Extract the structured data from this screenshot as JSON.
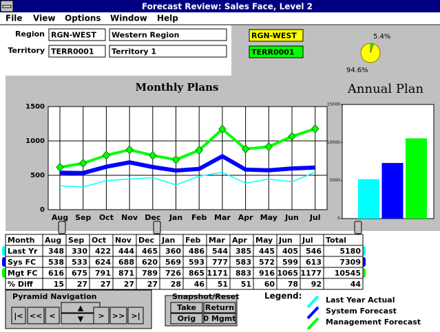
{
  "title_bar": "Forecast Review:  Sales Face,  Level 2",
  "menu": [
    "File",
    "View",
    "Options",
    "Window",
    "Help"
  ],
  "selection": {
    "region_label": "Region",
    "region_code": "RGN-WEST",
    "region_name": "Western Region",
    "territory_label": "Territory",
    "territory_code": "TERR0001",
    "territory_name": "Territory 1"
  },
  "badges": [
    {
      "text": "RGN-WEST",
      "color": "#ffff00"
    },
    {
      "text": "TERR0001",
      "color": "#00ff00"
    }
  ],
  "pie": {
    "type": "pie",
    "values": [
      5.4,
      94.6
    ],
    "value_labels": [
      "5.4%",
      "94.6%"
    ],
    "colors": [
      "#00ff00",
      "#ffff00"
    ]
  },
  "monthly_plans": {
    "type": "line",
    "title": "Monthly Plans",
    "ylim": [
      0,
      1500
    ],
    "yticks": [
      0,
      500,
      1000,
      1500
    ],
    "grid": true
  },
  "annual_plan": {
    "type": "bar",
    "title": "Annual Plan",
    "ylim": [
      0,
      15000
    ],
    "yticks": [
      0,
      5000,
      10000,
      15000
    ]
  },
  "table": {
    "header": [
      "Month",
      "Aug",
      "Sep",
      "Oct",
      "Nov",
      "Dec",
      "Jan",
      "Feb",
      "Mar",
      "Apr",
      "May",
      "Jun",
      "Jul",
      "Total"
    ],
    "rows": [
      [
        "Last Yr",
        348,
        330,
        422,
        444,
        465,
        360,
        486,
        544,
        385,
        445,
        405,
        546,
        5180
      ],
      [
        "Sys FC",
        538,
        533,
        624,
        688,
        620,
        569,
        593,
        777,
        583,
        572,
        599,
        613,
        7309
      ],
      [
        "Mgt FC",
        616,
        675,
        791,
        871,
        789,
        726,
        865,
        1171,
        883,
        916,
        1065,
        1177,
        10545
      ],
      [
        "% Diff",
        15,
        27,
        27,
        27,
        27,
        28,
        46,
        51,
        51,
        60,
        78,
        92,
        44
      ]
    ]
  },
  "pyramid_navigation": {
    "title": "Pyramid Navigation",
    "buttons": [
      "|<",
      "<<",
      "<",
      "▲",
      "▼",
      ">",
      ">>",
      ">|"
    ]
  },
  "snapshot": {
    "title": "Snapshot/Reset",
    "buttons": [
      "Take",
      "Return",
      "Orig",
      "0 Mgmt"
    ]
  },
  "legend": {
    "title": "Legend:",
    "items": [
      "Last Year Actual",
      "System Forecast",
      "Management Forecast"
    ],
    "colors": [
      "#00ffff",
      "#0000ff",
      "#00ff00"
    ]
  }
}
